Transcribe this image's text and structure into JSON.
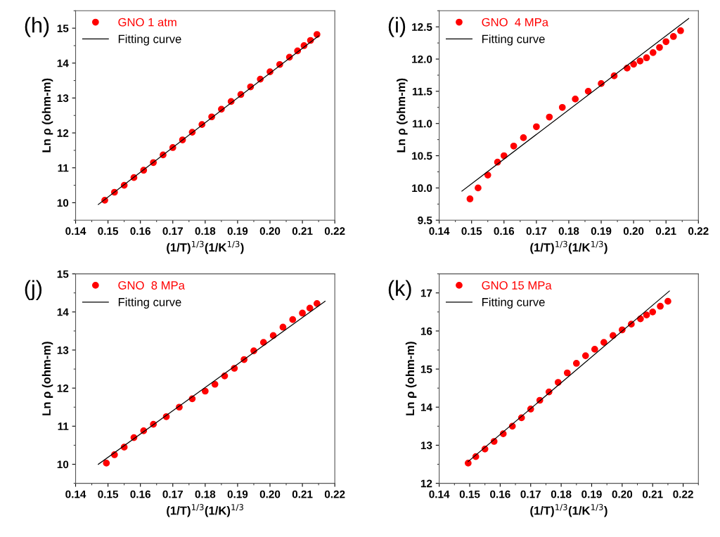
{
  "chart_data": [
    {
      "type": "scatter",
      "annotations": [
        "(h)"
      ],
      "xlabel": "(1/T)$^{1/3}$(1/K$^{1/3}$)",
      "ylabel": "Ln ρ (ohm-m)",
      "xlim": [
        0.14,
        0.22
      ],
      "xticks": [
        {
          "value": 0.14,
          "label": "0.14"
        },
        {
          "value": 0.15,
          "label": "0.15"
        },
        {
          "value": 0.16,
          "label": "0.16"
        },
        {
          "value": 0.17,
          "label": "0.17"
        },
        {
          "value": 0.18,
          "label": "0.18"
        },
        {
          "value": 0.19,
          "label": "0.19"
        },
        {
          "value": 0.2,
          "label": "0.20"
        },
        {
          "value": 0.21,
          "label": "0.21"
        },
        {
          "value": 0.22,
          "label": "0.22"
        }
      ],
      "ylim": [
        9.5,
        15.5
      ],
      "yticks": [
        10,
        11,
        12,
        13,
        14,
        15
      ],
      "legend": "top left",
      "grid": false,
      "series": [
        {
          "name": "GNO 1 atm",
          "marker": "circle",
          "color": "#ff0000",
          "x": [
            0.149,
            0.152,
            0.155,
            0.158,
            0.161,
            0.164,
            0.167,
            0.17,
            0.173,
            0.176,
            0.179,
            0.182,
            0.185,
            0.188,
            0.191,
            0.194,
            0.197,
            0.2,
            0.203,
            0.206,
            0.2085,
            0.2105,
            0.2125,
            0.2145
          ],
          "values": [
            10.07,
            10.3,
            10.5,
            10.72,
            10.93,
            11.15,
            11.37,
            11.58,
            11.8,
            12.02,
            12.24,
            12.46,
            12.68,
            12.9,
            13.1,
            13.32,
            13.54,
            13.75,
            13.96,
            14.17,
            14.35,
            14.5,
            14.65,
            14.82
          ]
        },
        {
          "name": "Fitting curve",
          "type": "line",
          "line_style": "solid",
          "color": "#000000",
          "x": [
            0.147,
            0.215
          ],
          "values": [
            9.95,
            14.78
          ]
        }
      ]
    },
    {
      "type": "scatter",
      "annotations": [
        "(i)"
      ],
      "xlabel": "(1/T)$^{1/3}$(1/K$^{1/3}$)",
      "ylabel": "Ln ρ (ohm-m)",
      "xlim": [
        0.14,
        0.22
      ],
      "xticks": [
        {
          "value": 0.14,
          "label": "0.14"
        },
        {
          "value": 0.15,
          "label": "0.15"
        },
        {
          "value": 0.16,
          "label": "0.16"
        },
        {
          "value": 0.17,
          "label": "0.17"
        },
        {
          "value": 0.18,
          "label": "0.18"
        },
        {
          "value": 0.19,
          "label": "0.19"
        },
        {
          "value": 0.2,
          "label": "0.20"
        },
        {
          "value": 0.21,
          "label": "0.21"
        },
        {
          "value": 0.22,
          "label": "0.22"
        }
      ],
      "ylim": [
        9.5,
        12.75
      ],
      "yticks": [
        {
          "value": 9.5,
          "label": "9.5"
        },
        {
          "value": 10,
          "label": "10.0"
        },
        {
          "value": 10.5,
          "label": "10.5"
        },
        {
          "value": 11,
          "label": "11.0"
        },
        {
          "value": 11.5,
          "label": "11.5"
        },
        {
          "value": 12,
          "label": "12.0"
        },
        {
          "value": 12.5,
          "label": "12.5"
        }
      ],
      "legend": "top left",
      "grid": false,
      "series": [
        {
          "name": "GNO  4 MPa",
          "marker": "circle",
          "color": "#ff0000",
          "x": [
            0.1495,
            0.152,
            0.155,
            0.158,
            0.16,
            0.163,
            0.166,
            0.17,
            0.174,
            0.178,
            0.182,
            0.186,
            0.19,
            0.194,
            0.198,
            0.2,
            0.202,
            0.204,
            0.206,
            0.208,
            0.21,
            0.2123,
            0.2145
          ],
          "values": [
            9.83,
            10.0,
            10.2,
            10.4,
            10.5,
            10.65,
            10.78,
            10.95,
            11.1,
            11.25,
            11.38,
            11.5,
            11.62,
            11.74,
            11.86,
            11.92,
            11.97,
            12.02,
            12.1,
            12.18,
            12.27,
            12.35,
            12.44
          ]
        },
        {
          "name": "Fitting curve",
          "type": "line",
          "line_style": "solid",
          "color": "#000000",
          "x": [
            0.147,
            0.217
          ],
          "values": [
            9.95,
            12.63
          ]
        }
      ]
    },
    {
      "type": "scatter",
      "annotations": [
        "(j)"
      ],
      "xlabel": "(1/T)$^{1/3}$(1/K)$^{1/3}$",
      "ylabel": "Ln ρ (ohm-m)",
      "xlim": [
        0.14,
        0.22
      ],
      "xticks": [
        {
          "value": 0.14,
          "label": "0.14"
        },
        {
          "value": 0.15,
          "label": "0.15"
        },
        {
          "value": 0.16,
          "label": "0.16"
        },
        {
          "value": 0.17,
          "label": "0.17"
        },
        {
          "value": 0.18,
          "label": "0.18"
        },
        {
          "value": 0.19,
          "label": "0.19"
        },
        {
          "value": 0.2,
          "label": "0.20"
        },
        {
          "value": 0.21,
          "label": "0.21"
        },
        {
          "value": 0.22,
          "label": "0.22"
        }
      ],
      "ylim": [
        9.5,
        15
      ],
      "yticks": [
        10,
        11,
        12,
        13,
        14,
        15
      ],
      "legend": "top left",
      "grid": false,
      "series": [
        {
          "name": "GNO  8 MPa",
          "marker": "circle",
          "color": "#ff0000",
          "x": [
            0.1495,
            0.152,
            0.155,
            0.158,
            0.161,
            0.164,
            0.168,
            0.172,
            0.176,
            0.18,
            0.183,
            0.186,
            0.189,
            0.192,
            0.195,
            0.198,
            0.201,
            0.204,
            0.207,
            0.21,
            0.2123,
            0.2145
          ],
          "values": [
            10.03,
            10.25,
            10.45,
            10.7,
            10.88,
            11.05,
            11.25,
            11.5,
            11.72,
            11.92,
            12.1,
            12.32,
            12.52,
            12.75,
            12.98,
            13.2,
            13.38,
            13.6,
            13.8,
            13.97,
            14.1,
            14.22
          ]
        },
        {
          "name": "Fitting curve",
          "type": "line",
          "line_style": "solid",
          "color": "#000000",
          "x": [
            0.147,
            0.217
          ],
          "values": [
            10.0,
            14.28
          ]
        }
      ]
    },
    {
      "type": "scatter",
      "annotations": [
        "(k)"
      ],
      "xlabel": "(1/T)$^{1/3}$(1/K$^{1/3}$)",
      "ylabel": "Ln ρ (ohm-m)",
      "xlim": [
        0.14,
        0.225
      ],
      "xticks": [
        {
          "value": 0.14,
          "label": "0.14"
        },
        {
          "value": 0.15,
          "label": "0.15"
        },
        {
          "value": 0.16,
          "label": "0.16"
        },
        {
          "value": 0.17,
          "label": "0.17"
        },
        {
          "value": 0.18,
          "label": "0.18"
        },
        {
          "value": 0.19,
          "label": "0.19"
        },
        {
          "value": 0.2,
          "label": "0.20"
        },
        {
          "value": 0.21,
          "label": "0.21"
        },
        {
          "value": 0.22,
          "label": "0.22"
        }
      ],
      "ylim": [
        12,
        17.5
      ],
      "yticks": [
        12,
        13,
        14,
        15,
        16,
        17
      ],
      "legend": "top left",
      "grid": false,
      "series": [
        {
          "name": "GNO 15 MPa",
          "marker": "circle",
          "color": "#ff0000",
          "x": [
            0.1495,
            0.152,
            0.155,
            0.158,
            0.161,
            0.164,
            0.167,
            0.17,
            0.173,
            0.176,
            0.179,
            0.182,
            0.185,
            0.188,
            0.191,
            0.194,
            0.197,
            0.2,
            0.203,
            0.206,
            0.208,
            0.21,
            0.2125,
            0.215
          ],
          "values": [
            12.53,
            12.7,
            12.9,
            13.1,
            13.3,
            13.5,
            13.72,
            13.95,
            14.18,
            14.4,
            14.65,
            14.9,
            15.15,
            15.35,
            15.52,
            15.7,
            15.88,
            16.03,
            16.18,
            16.32,
            16.42,
            16.5,
            16.65,
            16.78
          ]
        },
        {
          "name": "Fitting curve",
          "type": "line",
          "line_style": "solid",
          "color": "#000000",
          "x": [
            0.1495,
            0.2155
          ],
          "values": [
            12.57,
            17.05
          ]
        }
      ]
    }
  ]
}
